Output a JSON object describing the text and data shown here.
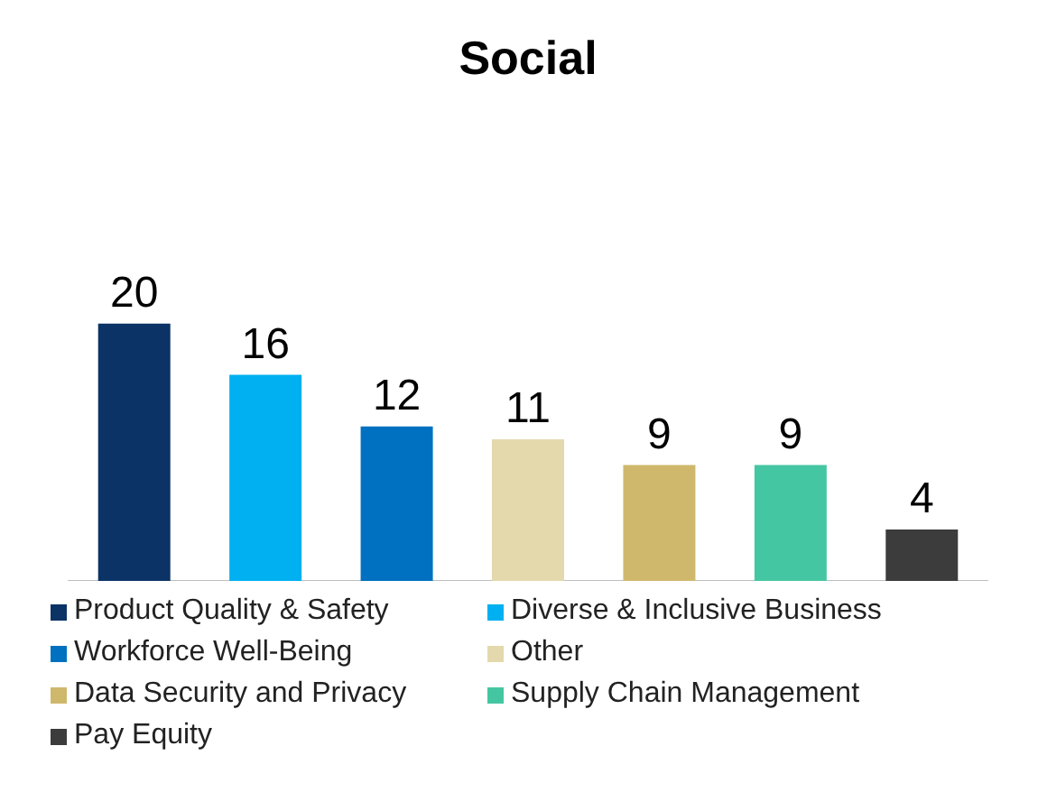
{
  "chart_data": {
    "type": "bar",
    "title": "Social",
    "categories": [
      null,
      null,
      null,
      null,
      null,
      null,
      null
    ],
    "stacked": true,
    "series": [
      {
        "name": "Product Quality & Safety",
        "color": "#0b3366",
        "values": [
          20,
          null,
          null,
          null,
          null,
          null,
          null
        ]
      },
      {
        "name": "Diverse & Inclusive Business",
        "color": "#00b0f0",
        "values": [
          null,
          16,
          null,
          null,
          null,
          null,
          null
        ]
      },
      {
        "name": "Workforce Well-Being",
        "color": "#0070c0",
        "values": [
          null,
          null,
          12,
          null,
          null,
          null,
          null
        ]
      },
      {
        "name": "Other",
        "color": "#e3d9ad",
        "values": [
          null,
          null,
          null,
          11,
          null,
          null,
          null
        ]
      },
      {
        "name": "Data Security and Privacy",
        "color": "#cfb86c",
        "values": [
          null,
          null,
          null,
          null,
          9,
          null,
          null
        ]
      },
      {
        "name": "Supply Chain Management",
        "color": "#45c6a2",
        "values": [
          null,
          null,
          null,
          null,
          null,
          9,
          null
        ]
      },
      {
        "name": "Pay Equity",
        "color": "#3c3c3c",
        "values": [
          null,
          null,
          null,
          null,
          null,
          null,
          4
        ]
      }
    ],
    "data_labels": true,
    "legend": "bottom",
    "tick_labels": false
  }
}
